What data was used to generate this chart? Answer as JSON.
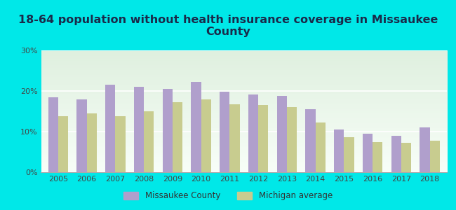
{
  "title": "18-64 population without health insurance coverage in Missaukee\nCounty",
  "years": [
    2005,
    2006,
    2007,
    2008,
    2009,
    2010,
    2011,
    2012,
    2013,
    2014,
    2015,
    2016,
    2017,
    2018
  ],
  "missaukee": [
    18.5,
    18.0,
    21.5,
    21.0,
    20.5,
    22.2,
    19.8,
    19.2,
    18.8,
    15.5,
    10.5,
    9.5,
    9.0,
    11.0
  ],
  "michigan": [
    13.8,
    14.5,
    13.8,
    15.0,
    17.2,
    18.0,
    16.8,
    16.5,
    16.0,
    12.2,
    8.7,
    7.5,
    7.2,
    7.8
  ],
  "missaukee_color": "#b09fcc",
  "michigan_color": "#c8cc8f",
  "background_outer": "#00e8e8",
  "background_inner_top": "#e8f5e8",
  "background_inner_bottom": "#f5fff5",
  "ylim": [
    0,
    30
  ],
  "yticks": [
    0,
    10,
    20,
    30
  ],
  "ytick_labels": [
    "0%",
    "10%",
    "20%",
    "30%"
  ],
  "legend_missaukee": "Missaukee County",
  "legend_michigan": "Michigan average",
  "bar_width": 0.35,
  "title_fontsize": 11.5,
  "tick_fontsize": 8,
  "title_color": "#1a2a4a"
}
